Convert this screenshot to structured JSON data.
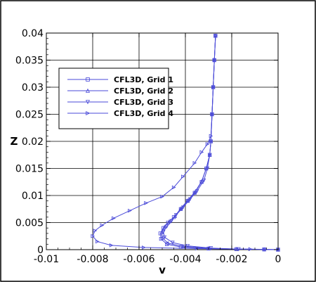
{
  "chart_data": {
    "type": "line",
    "xlabel": "v",
    "ylabel": "Z",
    "xlim": [
      -0.01,
      0
    ],
    "ylim": [
      0,
      0.04
    ],
    "x_ticks": [
      "-0.01",
      "-0.008",
      "-0.006",
      "-0.004",
      "-0.002",
      "0"
    ],
    "y_ticks": [
      "0",
      "0.005",
      "0.01",
      "0.015",
      "0.02",
      "0.025",
      "0.03",
      "0.035",
      "0.04"
    ],
    "grid": true,
    "legend_position": "upper-left",
    "line_color": "#4a4ad8",
    "series": [
      {
        "name": "CFL3D, Grid 1",
        "marker": "square",
        "points": [
          [
            0,
            0
          ],
          [
            -0.0006,
            5e-05
          ],
          [
            -0.0018,
            0.0001
          ],
          [
            -0.003,
            0.0002
          ],
          [
            -0.0042,
            0.0005
          ],
          [
            -0.0048,
            0.001
          ],
          [
            -0.00505,
            0.002
          ],
          [
            -0.00508,
            0.003
          ],
          [
            -0.00495,
            0.004
          ],
          [
            -0.00475,
            0.005
          ],
          [
            -0.0045,
            0.006
          ],
          [
            -0.0042,
            0.0075
          ],
          [
            -0.0039,
            0.009
          ],
          [
            -0.0036,
            0.0105
          ],
          [
            -0.0033,
            0.0125
          ],
          [
            -0.0031,
            0.015
          ],
          [
            -0.00295,
            0.0175
          ],
          [
            -0.0029,
            0.02
          ],
          [
            -0.00285,
            0.025
          ],
          [
            -0.0028,
            0.03
          ],
          [
            -0.00275,
            0.035
          ],
          [
            -0.0027,
            0.0395
          ]
        ]
      },
      {
        "name": "CFL3D, Grid 2",
        "marker": "triangle-up",
        "points": [
          [
            0,
            0
          ],
          [
            -0.0006,
            5e-05
          ],
          [
            -0.0018,
            0.0001
          ],
          [
            -0.003,
            0.00025
          ],
          [
            -0.0041,
            0.0006
          ],
          [
            -0.00475,
            0.0012
          ],
          [
            -0.005,
            0.0022
          ],
          [
            -0.00502,
            0.0032
          ],
          [
            -0.0049,
            0.0042
          ],
          [
            -0.0047,
            0.0052
          ],
          [
            -0.00445,
            0.0062
          ],
          [
            -0.0042,
            0.0076
          ],
          [
            -0.0039,
            0.0091
          ],
          [
            -0.0036,
            0.0106
          ],
          [
            -0.0033,
            0.0126
          ],
          [
            -0.0031,
            0.015
          ],
          [
            -0.00295,
            0.0175
          ],
          [
            -0.0029,
            0.02
          ],
          [
            -0.00285,
            0.025
          ],
          [
            -0.0028,
            0.03
          ],
          [
            -0.00275,
            0.035
          ],
          [
            -0.0027,
            0.0395
          ]
        ]
      },
      {
        "name": "CFL3D, Grid 3",
        "marker": "triangle-down",
        "points": [
          [
            0,
            0
          ],
          [
            -0.0006,
            5e-05
          ],
          [
            -0.0017,
            0.0001
          ],
          [
            -0.0029,
            0.0003
          ],
          [
            -0.0039,
            0.0007
          ],
          [
            -0.00455,
            0.0013
          ],
          [
            -0.0049,
            0.0023
          ],
          [
            -0.00495,
            0.0033
          ],
          [
            -0.0048,
            0.0043
          ],
          [
            -0.0046,
            0.0053
          ],
          [
            -0.0044,
            0.0064
          ],
          [
            -0.0041,
            0.0078
          ],
          [
            -0.0038,
            0.0093
          ],
          [
            -0.0035,
            0.0108
          ],
          [
            -0.0032,
            0.0128
          ],
          [
            -0.00305,
            0.015
          ],
          [
            -0.00295,
            0.0175
          ],
          [
            -0.0029,
            0.02
          ],
          [
            -0.00285,
            0.025
          ],
          [
            -0.0028,
            0.03
          ],
          [
            -0.00275,
            0.035
          ],
          [
            -0.0027,
            0.0395
          ]
        ]
      },
      {
        "name": "CFL3D, Grid 4",
        "marker": "triangle-right",
        "points": [
          [
            0,
            0
          ],
          [
            -0.0012,
            0.0001
          ],
          [
            -0.0035,
            0.0002
          ],
          [
            -0.0058,
            0.0004
          ],
          [
            -0.0072,
            0.0008
          ],
          [
            -0.0078,
            0.0015
          ],
          [
            -0.008,
            0.0025
          ],
          [
            -0.0079,
            0.0035
          ],
          [
            -0.0076,
            0.0045
          ],
          [
            -0.0071,
            0.0058
          ],
          [
            -0.0064,
            0.0072
          ],
          [
            -0.0057,
            0.0086
          ],
          [
            -0.005,
            0.0098
          ],
          [
            -0.0045,
            0.0115
          ],
          [
            -0.0041,
            0.0135
          ],
          [
            -0.0036,
            0.016
          ],
          [
            -0.0033,
            0.018
          ],
          [
            -0.00305,
            0.0195
          ],
          [
            -0.0029,
            0.021
          ],
          [
            -0.00285,
            0.025
          ],
          [
            -0.0028,
            0.03
          ],
          [
            -0.00275,
            0.035
          ],
          [
            -0.0027,
            0.0395
          ]
        ]
      }
    ]
  }
}
